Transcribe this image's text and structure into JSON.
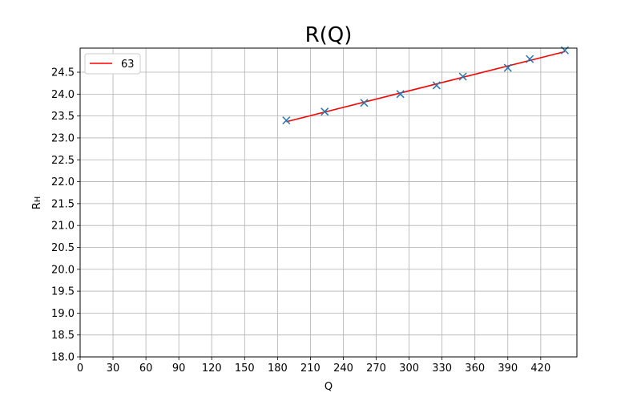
{
  "chart_data": {
    "type": "scatter",
    "title": "R(Q)",
    "xlabel": "Q",
    "ylabel": "R",
    "ylabel_sub": "H",
    "xlim": [
      0,
      453
    ],
    "ylim": [
      18.0,
      25.05
    ],
    "xticks": [
      0,
      30,
      60,
      90,
      120,
      150,
      180,
      210,
      240,
      270,
      300,
      330,
      360,
      390,
      420
    ],
    "yticks": [
      18.0,
      18.5,
      19.0,
      19.5,
      20.0,
      20.5,
      21.0,
      21.5,
      22.0,
      22.5,
      23.0,
      23.5,
      24.0,
      24.5
    ],
    "grid": true,
    "legend_position": "top-left",
    "points": {
      "marker": "x",
      "color": "#1f77b4",
      "x": [
        188,
        223,
        259,
        292,
        325,
        349,
        390,
        410,
        442
      ],
      "y": [
        23.4,
        23.6,
        23.8,
        24.0,
        24.2,
        24.4,
        24.6,
        24.8,
        25.0
      ]
    },
    "fit_line": {
      "name": "63",
      "color": "#ff0000",
      "x": [
        188,
        442
      ],
      "y": [
        23.37,
        24.97
      ]
    }
  }
}
